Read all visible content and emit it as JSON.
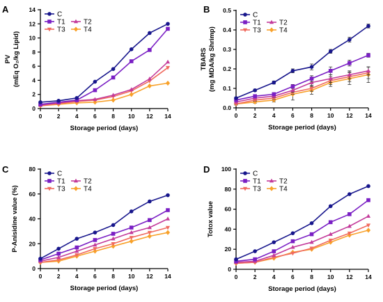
{
  "colors": {
    "C": "#17168c",
    "T1": "#7a1fc4",
    "T2": "#c33a9a",
    "T3": "#f06a5e",
    "T4": "#f8a12a"
  },
  "markers": {
    "C": "circle",
    "T1": "square",
    "T2": "triangle-up",
    "T3": "triangle-down",
    "T4": "diamond"
  },
  "chart_data": [
    {
      "panel": "A",
      "type": "line",
      "xlabel": "Storage period (days)",
      "ylabel": [
        "PV",
        "(mEq O₂/kg Lipid)"
      ],
      "x": [
        0,
        2,
        4,
        6,
        8,
        10,
        12,
        14
      ],
      "xlim": [
        0,
        14
      ],
      "ylim": [
        0,
        14
      ],
      "yticks": [
        0,
        2,
        4,
        6,
        8,
        10,
        12,
        14
      ],
      "legend_position": "top-left",
      "series": [
        {
          "name": "C",
          "values": [
            0.9,
            1.1,
            1.5,
            3.8,
            5.6,
            8.4,
            10.7,
            12.0
          ]
        },
        {
          "name": "T1",
          "values": [
            0.6,
            0.9,
            1.2,
            2.6,
            4.4,
            6.7,
            8.3,
            11.3
          ]
        },
        {
          "name": "T2",
          "values": [
            0.5,
            0.8,
            1.1,
            1.3,
            1.9,
            2.7,
            4.2,
            6.6
          ]
        },
        {
          "name": "T3",
          "values": [
            0.4,
            0.7,
            1.0,
            1.2,
            1.7,
            2.5,
            3.9,
            5.8
          ]
        },
        {
          "name": "T4",
          "values": [
            0.4,
            0.6,
            0.8,
            0.9,
            1.2,
            2.0,
            3.2,
            3.6
          ]
        }
      ]
    },
    {
      "panel": "B",
      "type": "line",
      "xlabel": "Storage period (days)",
      "ylabel": [
        "TBARS",
        "(mg MDA/kg Shrimp)"
      ],
      "x": [
        0,
        2,
        4,
        6,
        8,
        10,
        12,
        14
      ],
      "xlim": [
        0,
        14
      ],
      "ylim": [
        0,
        0.5
      ],
      "yticks": [
        0.0,
        0.1,
        0.2,
        0.3,
        0.4,
        0.5
      ],
      "legend_position": "top-left",
      "series": [
        {
          "name": "C",
          "values": [
            0.05,
            0.09,
            0.13,
            0.19,
            0.21,
            0.29,
            0.35,
            0.42
          ],
          "errors": [
            0.005,
            0.006,
            0.008,
            0.01,
            0.015,
            0.01,
            0.012,
            0.01
          ]
        },
        {
          "name": "T1",
          "values": [
            0.04,
            0.06,
            0.07,
            0.11,
            0.15,
            0.19,
            0.23,
            0.27
          ],
          "errors": [
            0.005,
            0.006,
            0.008,
            0.01,
            0.015,
            0.02,
            0.015,
            0.01
          ]
        },
        {
          "name": "T2",
          "values": [
            0.03,
            0.05,
            0.06,
            0.09,
            0.13,
            0.15,
            0.17,
            0.19
          ],
          "errors": [
            0.005,
            0.006,
            0.008,
            0.01,
            0.015,
            0.02,
            0.02,
            0.02
          ]
        },
        {
          "name": "T3",
          "values": [
            0.02,
            0.04,
            0.05,
            0.08,
            0.1,
            0.14,
            0.16,
            0.18
          ],
          "errors": [
            0.005,
            0.006,
            0.008,
            0.01,
            0.015,
            0.02,
            0.025,
            0.03
          ]
        },
        {
          "name": "T4",
          "values": [
            0.02,
            0.03,
            0.04,
            0.07,
            0.09,
            0.13,
            0.15,
            0.17
          ],
          "errors": [
            0.005,
            0.006,
            0.01,
            0.03,
            0.02,
            0.02,
            0.03,
            0.04
          ]
        }
      ]
    },
    {
      "panel": "C",
      "type": "line",
      "xlabel": "Storage period (days)",
      "ylabel": [
        "P-Anisidine value (%)"
      ],
      "x": [
        0,
        2,
        4,
        6,
        8,
        10,
        12,
        14
      ],
      "xlim": [
        0,
        14
      ],
      "ylim": [
        0,
        80
      ],
      "yticks": [
        0,
        20,
        40,
        60,
        80
      ],
      "legend_position": "top-left",
      "series": [
        {
          "name": "C",
          "values": [
            8,
            16,
            24,
            29,
            35,
            46,
            54,
            59
          ]
        },
        {
          "name": "T1",
          "values": [
            7,
            12,
            17,
            23,
            28,
            33,
            39,
            47
          ]
        },
        {
          "name": "T2",
          "values": [
            6,
            9,
            14,
            19,
            24,
            29,
            33,
            40
          ]
        },
        {
          "name": "T3",
          "values": [
            5,
            7,
            11,
            16,
            20,
            25,
            29,
            33
          ]
        },
        {
          "name": "T4",
          "values": [
            5,
            6,
            10,
            14,
            18,
            22,
            26,
            29
          ]
        }
      ]
    },
    {
      "panel": "D",
      "type": "line",
      "xlabel": "Storage period (days)",
      "ylabel": [
        "Totox value"
      ],
      "x": [
        0,
        2,
        4,
        6,
        8,
        10,
        12,
        14
      ],
      "xlim": [
        0,
        14
      ],
      "ylim": [
        0,
        100
      ],
      "yticks": [
        0,
        20,
        40,
        60,
        80,
        100
      ],
      "legend_position": "top-left",
      "series": [
        {
          "name": "C",
          "values": [
            10,
            18,
            27,
            36,
            46,
            63,
            75,
            83
          ]
        },
        {
          "name": "T1",
          "values": [
            8,
            10,
            18,
            28,
            35,
            47,
            55,
            69
          ]
        },
        {
          "name": "T2",
          "values": [
            7,
            8,
            14,
            22,
            27,
            35,
            43,
            53
          ]
        },
        {
          "name": "T3",
          "values": [
            6,
            7,
            12,
            16,
            21,
            29,
            36,
            44
          ]
        },
        {
          "name": "T4",
          "values": [
            6,
            7,
            11,
            17,
            20,
            27,
            34,
            39
          ]
        }
      ]
    }
  ]
}
